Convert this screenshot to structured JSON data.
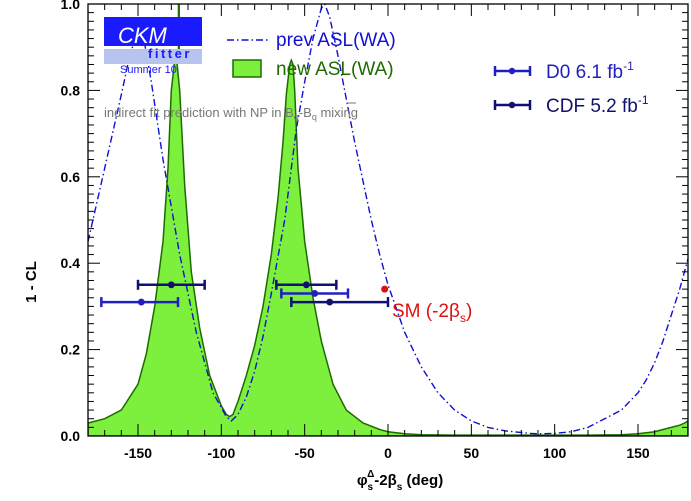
{
  "logo": {
    "line1": "CKM",
    "line2": "fitter",
    "line3": "Summer 10"
  },
  "annotation": "indirect fit prediction with NP in B",
  "annotation_sub": "q",
  "annotation_mid": "-B",
  "sm_label": "SM (-2β",
  "sm_label_sub": "s",
  "sm_label_close": ")",
  "xlabel_main": "φ",
  "xlabel_sub1": "s",
  "xlabel_sup": "Δ",
  "xlabel_mid": "-2β",
  "xlabel_sub2": "s",
  "xlabel_unit": " (deg)",
  "ylabel": "1 - CL",
  "colors": {
    "fill": "#7cf03c",
    "outline": "#1e6b00",
    "prev": "#1010d0",
    "d0": "#2020c0",
    "cdf": "#101070",
    "sm": "#dd1111",
    "logo_bg": "#1a1aff",
    "logo_sub_bg": "#b8c4f0"
  },
  "chart_data": {
    "type": "line",
    "xlabel": "φsΔ-2βs (deg)",
    "ylabel": "1 - CL",
    "xlim": [
      -180,
      180
    ],
    "ylim": [
      0,
      1.0
    ],
    "xticks": [
      -150,
      -100,
      -50,
      0,
      50,
      100,
      150
    ],
    "yticks": [
      0.0,
      0.2,
      0.4,
      0.6,
      0.8,
      1.0
    ],
    "ytick_labels": [
      "0.0",
      "0.2",
      "0.4",
      "0.6",
      "0.8",
      "1.0"
    ],
    "grid": false,
    "series": [
      {
        "name": "prev ASL(WA)",
        "style": "dash-dot",
        "x": [
          -180,
          -170,
          -160,
          -155,
          -150,
          -147,
          -142,
          -135,
          -125,
          -115,
          -105,
          -97,
          -94,
          -90,
          -85,
          -80,
          -75,
          -70,
          -62,
          -55,
          -50,
          -45,
          -40,
          -38,
          -35,
          -30,
          -25,
          -20,
          -15,
          -10,
          -5,
          0,
          10,
          20,
          30,
          40,
          50,
          60,
          70,
          80,
          85,
          90,
          100,
          110,
          120,
          130,
          140,
          150,
          155,
          160,
          165,
          170,
          175,
          180
        ],
        "y": [
          0.45,
          0.62,
          0.79,
          0.88,
          0.94,
          0.93,
          0.82,
          0.64,
          0.42,
          0.24,
          0.1,
          0.045,
          0.035,
          0.05,
          0.09,
          0.15,
          0.23,
          0.33,
          0.5,
          0.71,
          0.82,
          0.92,
          0.99,
          1.0,
          0.97,
          0.88,
          0.78,
          0.68,
          0.59,
          0.5,
          0.42,
          0.35,
          0.24,
          0.16,
          0.1,
          0.06,
          0.035,
          0.02,
          0.012,
          0.008,
          0.006,
          0.005,
          0.006,
          0.01,
          0.02,
          0.04,
          0.06,
          0.1,
          0.13,
          0.17,
          0.22,
          0.28,
          0.34,
          0.41
        ]
      },
      {
        "name": "new ASL(WA)",
        "style": "filled",
        "x": [
          -180,
          -170,
          -160,
          -150,
          -145,
          -140,
          -135,
          -132,
          -130,
          -128,
          -127,
          -125,
          -122,
          -118,
          -113,
          -107,
          -100,
          -97,
          -95,
          -93,
          -90,
          -85,
          -80,
          -75,
          -70,
          -66,
          -63,
          -61,
          -59,
          -58,
          -57,
          -56,
          -54,
          -50,
          -45,
          -40,
          -33,
          -25,
          -15,
          -5,
          0,
          10,
          20,
          40,
          60,
          80,
          100,
          120,
          140,
          150,
          160,
          165,
          170,
          175,
          178,
          180
        ],
        "y": [
          0.03,
          0.04,
          0.06,
          0.12,
          0.19,
          0.3,
          0.45,
          0.62,
          0.8,
          0.87,
          0.88,
          0.8,
          0.58,
          0.38,
          0.25,
          0.14,
          0.07,
          0.05,
          0.045,
          0.05,
          0.08,
          0.14,
          0.21,
          0.3,
          0.42,
          0.55,
          0.68,
          0.79,
          0.86,
          0.87,
          0.86,
          0.8,
          0.62,
          0.45,
          0.32,
          0.22,
          0.12,
          0.06,
          0.03,
          0.015,
          0.01,
          0.005,
          0.003,
          0.002,
          0.002,
          0.002,
          0.002,
          0.002,
          0.003,
          0.005,
          0.01,
          0.015,
          0.02,
          0.025,
          0.03,
          0.035
        ]
      }
    ],
    "spike": {
      "x": -125.5,
      "y": 1.0
    },
    "errorbars": [
      {
        "name": "D0 6.1 fb",
        "name_sup": "-1",
        "color_key": "d0",
        "points": [
          {
            "x": -148,
            "y": 0.31,
            "xmin": -172,
            "xmax": -126
          },
          {
            "x": -44,
            "y": 0.33,
            "xmin": -64,
            "xmax": -24
          }
        ]
      },
      {
        "name": "CDF 5.2 fb",
        "name_sup": "-1",
        "color_key": "cdf",
        "points": [
          {
            "x": -130,
            "y": 0.35,
            "xmin": -150,
            "xmax": -110
          },
          {
            "x": -49,
            "y": 0.35,
            "xmin": -67,
            "xmax": -31
          },
          {
            "x": -35,
            "y": 0.31,
            "xmin": -58,
            "xmax": 0
          }
        ]
      }
    ],
    "sm_point": {
      "x": -2,
      "y": 0.34
    }
  }
}
